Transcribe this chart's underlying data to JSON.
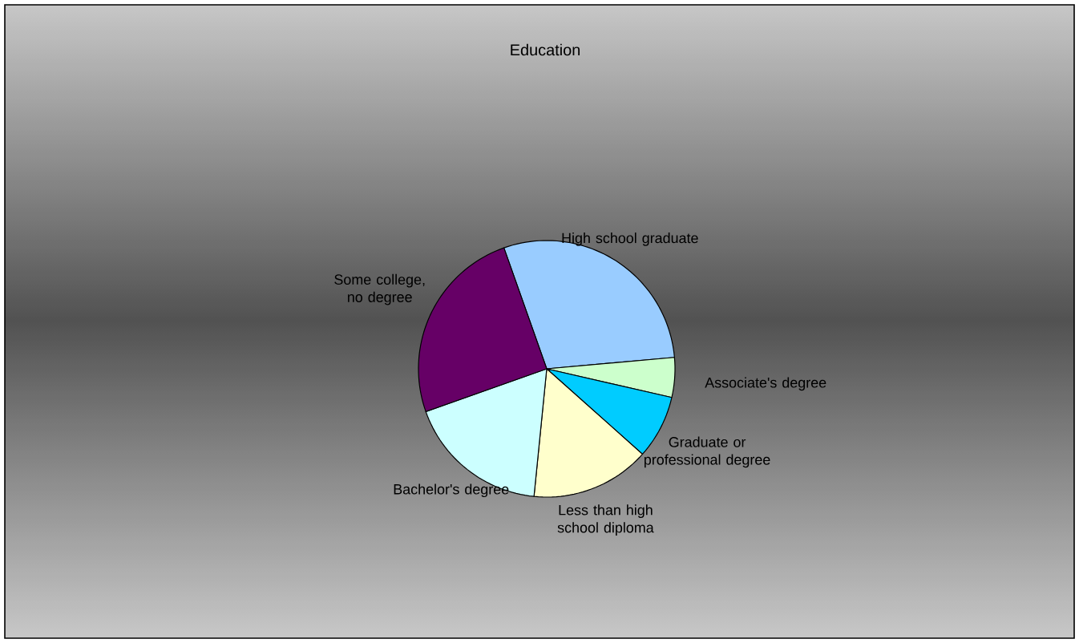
{
  "chart_data": {
    "type": "pie",
    "title": "Education",
    "categories": [
      "High school graduate",
      "Associate's degree",
      "Graduate or professional degree",
      "Less than high school diploma",
      "Bachelor's degree",
      "Some college, no degree"
    ],
    "values": [
      29,
      5,
      8,
      15,
      18,
      25
    ],
    "colors": [
      "#99ccff",
      "#ccffcc",
      "#00ccff",
      "#ffffcc",
      "#ccffff",
      "#660066"
    ]
  }
}
